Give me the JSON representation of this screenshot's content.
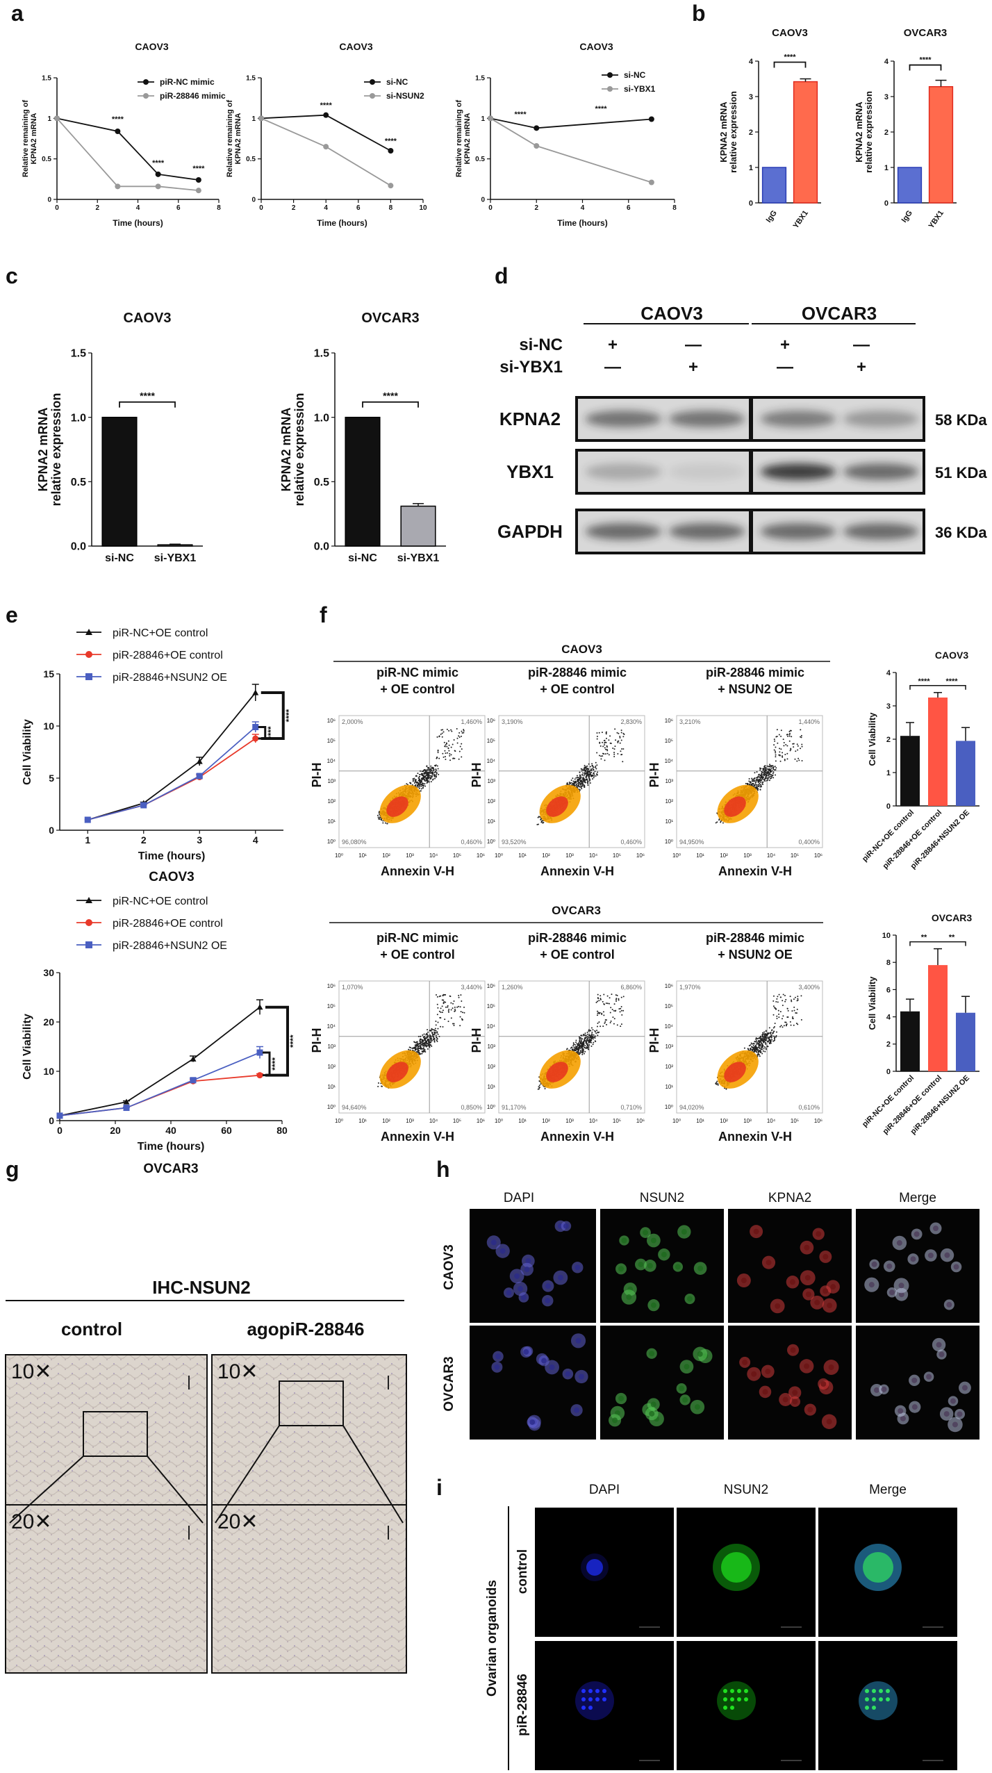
{
  "panels": {
    "a": "a",
    "b": "b",
    "c": "c",
    "d": "d",
    "e": "e",
    "f": "f",
    "g": "g",
    "h": "h",
    "i": "i"
  },
  "chart_data": [
    {
      "id": "a1",
      "type": "line",
      "title": "CAOV3",
      "xlabel": "Time (hours)",
      "ylabel": "Relative remaining of KPNA2 mRNA",
      "xlim": [
        0,
        8
      ],
      "ylim": [
        0,
        1.5
      ],
      "xticks": [
        0,
        2,
        4,
        6,
        8
      ],
      "yticks": [
        0.0,
        0.5,
        1.0,
        1.5
      ],
      "series": [
        {
          "name": "piR-NC mimic",
          "color": "#111111",
          "x": [
            0,
            3,
            5,
            7
          ],
          "y": [
            1.0,
            0.84,
            0.31,
            0.24
          ]
        },
        {
          "name": "piR-28846 mimic",
          "color": "#999999",
          "x": [
            0,
            3,
            5,
            7
          ],
          "y": [
            1.0,
            0.16,
            0.16,
            0.11
          ]
        }
      ],
      "annotations": [
        {
          "x": 3,
          "y": 0.96,
          "text": "****"
        },
        {
          "x": 5,
          "y": 0.42,
          "text": "****"
        },
        {
          "x": 7,
          "y": 0.35,
          "text": "****"
        }
      ]
    },
    {
      "id": "a2",
      "type": "line",
      "title": "CAOV3",
      "xlabel": "Time (hours)",
      "ylabel": "Relative remaining of KPNA2 mRNA",
      "xlim": [
        0,
        10
      ],
      "ylim": [
        0,
        1.5
      ],
      "xticks": [
        0,
        2,
        4,
        6,
        8,
        10
      ],
      "yticks": [
        0.0,
        0.5,
        1.0,
        1.5
      ],
      "series": [
        {
          "name": "si-NC",
          "color": "#111111",
          "x": [
            0,
            4,
            8
          ],
          "y": [
            1.0,
            1.04,
            0.6
          ]
        },
        {
          "name": "si-NSUN2",
          "color": "#999999",
          "x": [
            0,
            4,
            8
          ],
          "y": [
            1.0,
            0.65,
            0.17
          ]
        }
      ],
      "annotations": [
        {
          "x": 4,
          "y": 1.13,
          "text": "****"
        },
        {
          "x": 8,
          "y": 0.69,
          "text": "****"
        }
      ]
    },
    {
      "id": "a3",
      "type": "line",
      "title": "CAOV3",
      "xlabel": "Time (hours)",
      "ylabel": "Relative remaining of KPNA2 mRNA",
      "xlim": [
        0,
        8
      ],
      "ylim": [
        0,
        1.5
      ],
      "xticks": [
        0,
        2,
        4,
        6,
        8
      ],
      "yticks": [
        0.0,
        0.5,
        1.0,
        1.5
      ],
      "series": [
        {
          "name": "si-NC",
          "color": "#111111",
          "x": [
            0,
            2,
            7
          ],
          "y": [
            1.0,
            0.88,
            0.99
          ]
        },
        {
          "name": "si-YBX1",
          "color": "#999999",
          "x": [
            0,
            2,
            7
          ],
          "y": [
            1.0,
            0.66,
            0.21
          ]
        }
      ],
      "annotations": [
        {
          "x": 1.3,
          "y": 1.02,
          "text": "****"
        },
        {
          "x": 4.8,
          "y": 1.09,
          "text": "****"
        }
      ]
    },
    {
      "id": "b1",
      "type": "bar",
      "title": "CAOV3",
      "ylabel": "KPNA2 mRNA relative expression",
      "categories": [
        "IgG",
        "YBX1"
      ],
      "values": [
        1.0,
        3.42
      ],
      "errors": [
        0,
        0.08
      ],
      "colors": [
        "#5b6fd1",
        "#ff6a4d"
      ],
      "edgecolors": [
        "#2a3db5",
        "#e02a1e"
      ],
      "ylim": [
        0,
        4
      ],
      "yticks": [
        0,
        1,
        2,
        3,
        4
      ],
      "sig": "****"
    },
    {
      "id": "b2",
      "type": "bar",
      "title": "OVCAR3",
      "ylabel": "KPNA2 mRNA relative expression",
      "categories": [
        "IgG",
        "YBX1"
      ],
      "values": [
        1.0,
        3.28
      ],
      "errors": [
        0,
        0.18
      ],
      "colors": [
        "#5b6fd1",
        "#ff6a4d"
      ],
      "edgecolors": [
        "#2a3db5",
        "#e02a1e"
      ],
      "ylim": [
        0,
        4
      ],
      "yticks": [
        0,
        1,
        2,
        3,
        4
      ],
      "sig": "****"
    },
    {
      "id": "c1",
      "type": "bar",
      "title": "CAOV3",
      "ylabel": "KPNA2 mRNA relative expression",
      "categories": [
        "si-NC",
        "si-YBX1"
      ],
      "values": [
        1.0,
        0.01
      ],
      "errors": [
        0,
        0.005
      ],
      "colors": [
        "#111111",
        "#888888"
      ],
      "edgecolors": [
        "#000000",
        "#000000"
      ],
      "ylim": [
        0,
        1.5
      ],
      "yticks": [
        0.0,
        0.5,
        1.0,
        1.5
      ],
      "sig": "****"
    },
    {
      "id": "c2",
      "type": "bar",
      "title": "OVCAR3",
      "ylabel": "KPNA2 mRNA relative expression",
      "categories": [
        "si-NC",
        "si-YBX1"
      ],
      "values": [
        1.0,
        0.31
      ],
      "errors": [
        0,
        0.02
      ],
      "colors": [
        "#111111",
        "#a9a9b0"
      ],
      "edgecolors": [
        "#000000",
        "#000000"
      ],
      "ylim": [
        0,
        1.5
      ],
      "yticks": [
        0.0,
        0.5,
        1.0,
        1.5
      ],
      "sig": "****"
    },
    {
      "id": "e1",
      "type": "line",
      "title": "",
      "caption": "CAOV3",
      "xlabel": "Time (hours)",
      "ylabel": "Cell Viability",
      "xlim": [
        0.5,
        4.5
      ],
      "ylim": [
        0,
        15
      ],
      "xticks": [
        1,
        2,
        3,
        4
      ],
      "yticks": [
        0,
        5,
        10,
        15
      ],
      "series": [
        {
          "name": "piR-NC+OE control",
          "color": "#111111",
          "marker": "triangle",
          "x": [
            1,
            2,
            3,
            4
          ],
          "y": [
            1.0,
            2.6,
            6.6,
            13.2
          ],
          "err": [
            0,
            0.1,
            0.4,
            0.8
          ]
        },
        {
          "name": "piR-28846+OE control",
          "color": "#e8392a",
          "marker": "circle",
          "x": [
            1,
            2,
            3,
            4
          ],
          "y": [
            1.0,
            2.4,
            5.1,
            8.8
          ],
          "err": [
            0,
            0.1,
            0.2,
            0.4
          ]
        },
        {
          "name": "piR-28846+NSUN2 OE",
          "color": "#4a5fc1",
          "marker": "square",
          "x": [
            1,
            2,
            3,
            4
          ],
          "y": [
            1.0,
            2.4,
            5.2,
            9.9
          ],
          "err": [
            0,
            0.1,
            0.2,
            0.5
          ]
        }
      ],
      "brackets": [
        "****",
        "****"
      ]
    },
    {
      "id": "e2",
      "type": "line",
      "title": "",
      "caption": "OVCAR3",
      "xlabel": "Time (hours)",
      "ylabel": "Cell Viability",
      "xlim": [
        0,
        80
      ],
      "ylim": [
        0,
        30
      ],
      "xticks": [
        0,
        20,
        40,
        60,
        80
      ],
      "yticks": [
        0,
        10,
        20,
        30
      ],
      "series": [
        {
          "name": "piR-NC+OE control",
          "color": "#111111",
          "marker": "triangle",
          "x": [
            0,
            24,
            48,
            72
          ],
          "y": [
            1.0,
            3.8,
            12.5,
            23.0
          ],
          "err": [
            0,
            0.2,
            0.6,
            1.5
          ]
        },
        {
          "name": "piR-28846+OE control",
          "color": "#e8392a",
          "marker": "circle",
          "x": [
            0,
            24,
            48,
            72
          ],
          "y": [
            1.0,
            2.6,
            8.0,
            9.2
          ],
          "err": [
            0,
            0.1,
            0.3,
            0.3
          ]
        },
        {
          "name": "piR-28846+NSUN2 OE",
          "color": "#4a5fc1",
          "marker": "square",
          "x": [
            0,
            24,
            48,
            72
          ],
          "y": [
            1.0,
            2.6,
            8.2,
            13.8
          ],
          "err": [
            0,
            0.1,
            0.4,
            1.2
          ]
        }
      ],
      "brackets": [
        "****",
        "****"
      ]
    },
    {
      "id": "f1",
      "type": "bar",
      "title": "CAOV3",
      "ylabel": "Cell Viability",
      "categories": [
        "piR-NC+OE control",
        "piR-28846+OE control",
        "piR-28846+NSUN2 OE"
      ],
      "values": [
        2.1,
        3.25,
        1.95
      ],
      "errors": [
        0.4,
        0.15,
        0.4
      ],
      "colors": [
        "#111111",
        "#ff5544",
        "#4a5fc1"
      ],
      "ylim": [
        0,
        4
      ],
      "yticks": [
        0,
        1,
        2,
        3,
        4
      ],
      "sig": [
        "****",
        "****"
      ]
    },
    {
      "id": "f2",
      "type": "bar",
      "title": "OVCAR3",
      "ylabel": "Cell Viability",
      "categories": [
        "piR-NC+OE control",
        "piR-28846+OE control",
        "piR-28846+NSUN2 OE"
      ],
      "values": [
        4.4,
        7.8,
        4.3
      ],
      "errors": [
        0.9,
        1.2,
        1.2
      ],
      "colors": [
        "#111111",
        "#ff5544",
        "#4a5fc1"
      ],
      "ylim": [
        0,
        10
      ],
      "yticks": [
        0,
        2,
        4,
        6,
        8,
        10
      ],
      "sig": [
        "**",
        "**"
      ]
    }
  ],
  "western": {
    "groups": [
      "CAOV3",
      "OVCAR3"
    ],
    "rows": [
      "si-NC",
      "si-YBX1"
    ],
    "signs": [
      [
        "+",
        "—",
        "+",
        "—"
      ],
      [
        "—",
        "+",
        "—",
        "+"
      ]
    ],
    "bands": [
      {
        "name": "KPNA2",
        "size": "58 KDa"
      },
      {
        "name": "YBX1",
        "size": "51 KDa"
      },
      {
        "name": "GAPDH",
        "size": "36 KDa"
      }
    ]
  },
  "flow": {
    "xlabel": "Annexin V-H",
    "ylabel": "PI-H",
    "caov3": {
      "title": "CAOV3",
      "plots": [
        {
          "label1": "piR-NC mimic",
          "label2": "+ OE control",
          "q": [
            "2,000%",
            "1,460%",
            "96,080%",
            "0,460%"
          ]
        },
        {
          "label1": "piR-28846 mimic",
          "label2": "+ OE control",
          "q": [
            "3,190%",
            "2,830%",
            "93,520%",
            "0,460%"
          ]
        },
        {
          "label1": "piR-28846 mimic",
          "label2": "+ NSUN2 OE",
          "q": [
            "3,210%",
            "1,440%",
            "94,950%",
            "0,400%"
          ]
        }
      ]
    },
    "ovcar3": {
      "title": "OVCAR3",
      "plots": [
        {
          "label1": "piR-NC mimic",
          "label2": "+ OE control",
          "q": [
            "1,070%",
            "3,440%",
            "94,640%",
            "0,850%"
          ]
        },
        {
          "label1": "piR-28846 mimic",
          "label2": "+ OE control",
          "q": [
            "1,260%",
            "6,860%",
            "91,170%",
            "0,710%"
          ]
        },
        {
          "label1": "piR-28846 mimic",
          "label2": "+ NSUN2 OE",
          "q": [
            "1,970%",
            "3,400%",
            "94,020%",
            "0,610%"
          ]
        }
      ]
    }
  },
  "ihc": {
    "title": "IHC-NSUN2",
    "col1": "control",
    "col2": "agopiR-28846",
    "mag1": "10✕",
    "mag2": "20✕"
  },
  "if_h": {
    "cols": [
      "DAPI",
      "NSUN2",
      "KPNA2",
      "Merge"
    ],
    "rows": [
      "CAOV3",
      "OVCAR3"
    ]
  },
  "if_i": {
    "cols": [
      "DAPI",
      "NSUN2",
      "Merge"
    ],
    "rows": [
      "control",
      "piR-28846"
    ],
    "side": "Ovarian organoids"
  }
}
